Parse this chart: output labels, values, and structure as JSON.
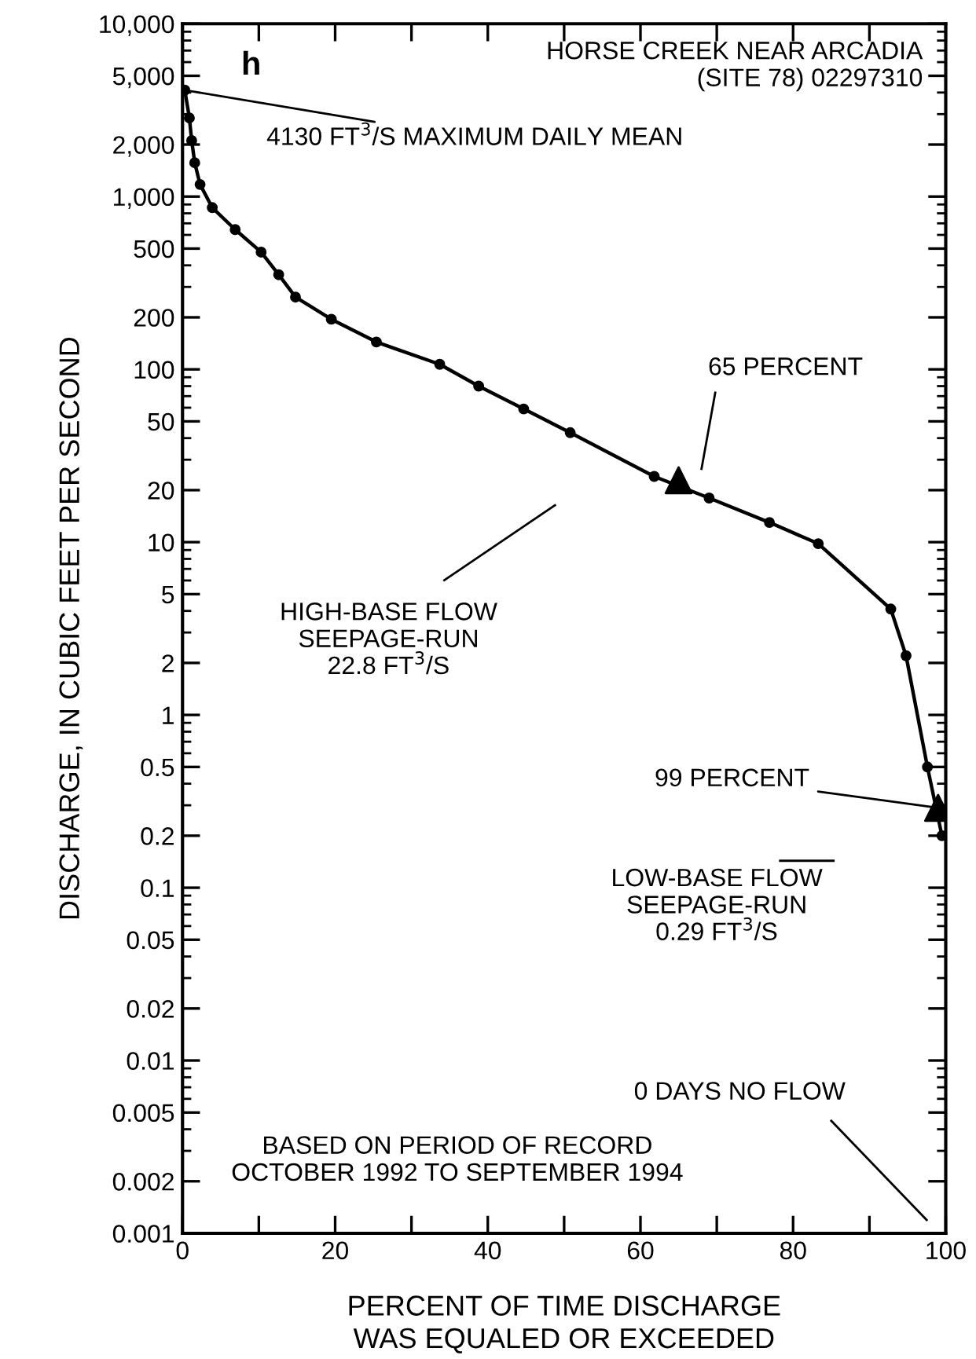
{
  "chart_data": {
    "type": "line",
    "xlabel": "PERCENT OF TIME DISCHARGE\nWAS EQUALED OR EXCEEDED",
    "ylabel": "DISCHARGE, IN CUBIC FEET PER SECOND",
    "log": "y",
    "xlim": [
      0,
      100
    ],
    "ylim": [
      0.001,
      10000
    ],
    "xticks": [
      0,
      {
        "value": 10,
        "label": null
      },
      20,
      {
        "value": 30,
        "label": null
      },
      40,
      {
        "value": 50,
        "label": null
      },
      60,
      {
        "value": 70,
        "label": null
      },
      80,
      {
        "value": 90,
        "label": null
      },
      100
    ],
    "yticks": [
      {
        "value": 0.001,
        "label": "0.001"
      },
      {
        "value": 0.002,
        "label": "0.002"
      },
      {
        "value": 0.005,
        "label": "0.005"
      },
      {
        "value": 0.01,
        "label": "0.01"
      },
      {
        "value": 0.02,
        "label": "0.02"
      },
      {
        "value": 0.05,
        "label": "0.05"
      },
      {
        "value": 0.1,
        "label": "0.1"
      },
      {
        "value": 0.2,
        "label": "0.2"
      },
      {
        "value": 0.5,
        "label": "0.5"
      },
      1,
      2,
      5,
      10,
      20,
      50,
      100,
      200,
      500,
      {
        "value": 1000,
        "label": "1,000"
      },
      {
        "value": 2000,
        "label": "2,000"
      },
      {
        "value": 5000,
        "label": "5,000"
      },
      {
        "value": 10000,
        "label": "10,000"
      }
    ],
    "grid": false,
    "legend": false,
    "series": [
      {
        "color": "#000000",
        "marker": "circle",
        "line_style": "solid",
        "x": [
          0.3,
          0.9,
          1.2,
          1.6,
          2.3,
          3.9,
          6.9,
          10.3,
          12.6,
          14.8,
          19.5,
          25.4,
          33.7,
          38.8,
          44.7,
          50.8,
          61.8,
          69,
          76.9,
          83.3,
          92.8,
          94.8,
          97.6,
          99.5
        ],
        "values": [
          4130,
          2850,
          2110,
          1570,
          1175,
          863,
          644,
          477,
          353,
          262,
          195,
          144,
          107,
          80,
          59,
          43,
          24,
          18,
          13,
          9.8,
          4.1,
          2.2,
          0.5,
          0.2
        ]
      },
      {
        "type": "scatter",
        "color": "#000000",
        "marker": "triangle",
        "x": [
          65,
          99
        ],
        "values": [
          22.8,
          0.29
        ]
      }
    ],
    "annotations": [
      "h",
      "HORSE CREEK NEAR ARCADIA\n(SITE 78) 02297310",
      {
        "text": "4130 FT$^{3}$/S MAXIMUM DAILY MEAN",
        "x": 0.3,
        "y": 4130
      },
      "65 PERCENT",
      "HIGH-BASE FLOW\nSEEPAGE-RUN\n22.8 FT$^{3}$/S",
      {
        "text": "99 PERCENT",
        "x": 99,
        "y": 0.29
      },
      "LOW-BASE FLOW\nSEEPAGE-RUN\n0.29 FT$^{3}$/S",
      "0 DAYS NO FLOW",
      "BASED ON PERIOD OF RECORD\nOCTOBER 1992 TO SEPTEMBER 1994"
    ]
  }
}
